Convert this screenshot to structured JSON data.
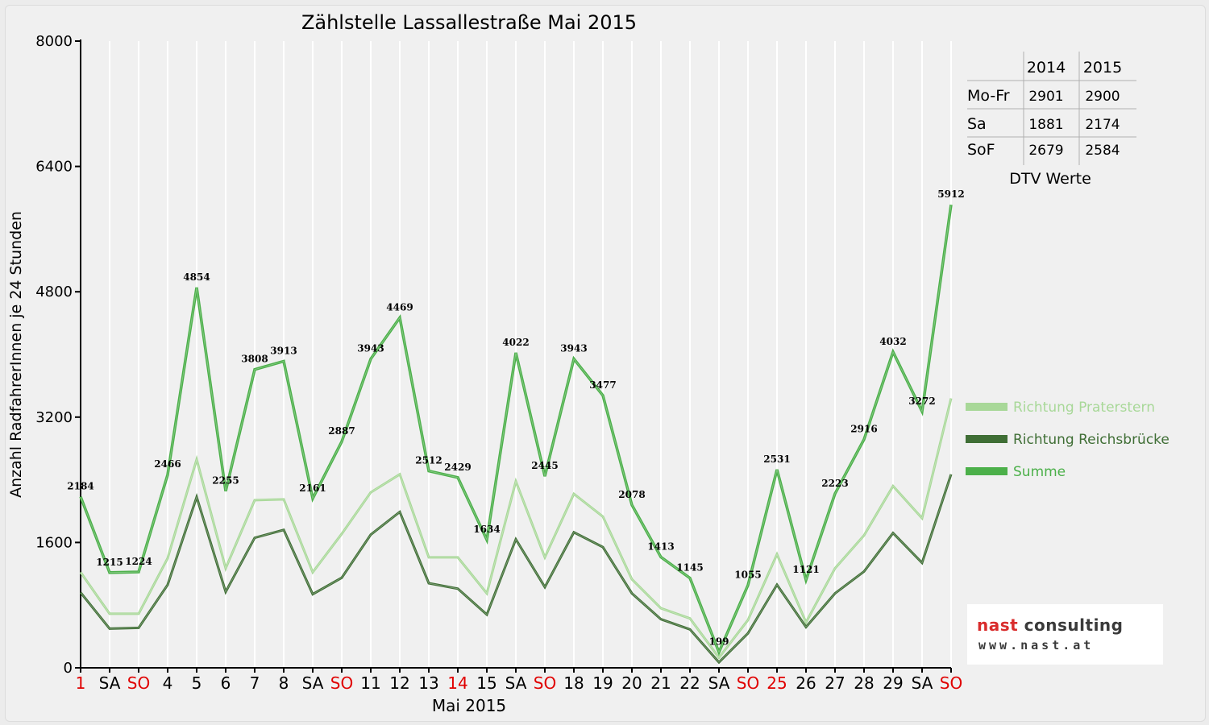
{
  "chart_data": {
    "type": "line",
    "title": "Zählstelle Lassallestraße Mai 2015",
    "xlabel": "Mai 2015",
    "ylabel": "Anzahl RadfahrerInnen je 24 Stunden",
    "ylim": [
      0,
      8000
    ],
    "yticks": [
      "0",
      "1600",
      "3200",
      "4800",
      "6400",
      "8000"
    ],
    "grid": "vertical",
    "legend_placement": "right",
    "categories": [
      "1",
      "SA",
      "SO",
      "4",
      "5",
      "6",
      "7",
      "8",
      "SA",
      "SO",
      "11",
      "12",
      "13",
      "14",
      "15",
      "SA",
      "SO",
      "18",
      "19",
      "20",
      "21",
      "22",
      "SA",
      "SO",
      "25",
      "26",
      "27",
      "28",
      "29",
      "SA",
      "SO"
    ],
    "red_categories": [
      0,
      2,
      9,
      13,
      16,
      23,
      24,
      30
    ],
    "series": [
      {
        "name": "Richtung Praterstern",
        "color": "#a8d898",
        "values": [
          1220,
          690,
          690,
          1400,
          2660,
          1270,
          2140,
          2150,
          1220,
          1710,
          2240,
          2470,
          1410,
          1410,
          950,
          2380,
          1410,
          2220,
          1930,
          1130,
          760,
          630,
          130,
          610,
          1450,
          580,
          1270,
          1690,
          2320,
          1910,
          3440
        ]
      },
      {
        "name": "Richtung Reichsbrücke",
        "color": "#3f6e35",
        "values": [
          960,
          500,
          510,
          1060,
          2180,
          970,
          1660,
          1760,
          940,
          1150,
          1700,
          1990,
          1080,
          1010,
          680,
          1640,
          1030,
          1730,
          1540,
          950,
          620,
          490,
          70,
          440,
          1060,
          520,
          950,
          1230,
          1720,
          1340,
          2470
        ]
      },
      {
        "name": "Summe",
        "color": "#4cb04a",
        "values": [
          2184,
          1215,
          1224,
          2466,
          4854,
          2255,
          3808,
          3913,
          2161,
          2887,
          3943,
          4469,
          2512,
          2429,
          1634,
          4022,
          2445,
          3943,
          3477,
          2078,
          1413,
          1145,
          199,
          1055,
          2531,
          1121,
          2223,
          2916,
          4032,
          3272,
          5912
        ],
        "labels": [
          "2184",
          "1215",
          "1224",
          "2466",
          "4854",
          "2255",
          "3808",
          "3913",
          "2161",
          "2887",
          "3943",
          "4469",
          "2512",
          "2429",
          "1634",
          "4022",
          "2445",
          "3943",
          "3477",
          "2078",
          "1413",
          "1145",
          "199",
          "1055",
          "2531",
          "1121",
          "2223",
          "2916",
          "4032",
          "3272",
          "5912"
        ]
      }
    ]
  },
  "dtv_table": {
    "headers": [
      "",
      "2014",
      "2015"
    ],
    "rows": [
      [
        "Mo-Fr",
        "2901",
        "2900"
      ],
      [
        "Sa",
        "1881",
        "2174"
      ],
      [
        "SoF",
        "2679",
        "2584"
      ]
    ],
    "caption": "DTV Werte"
  },
  "logo": {
    "brand_part1": "nast",
    "brand_part2": "consulting",
    "url": "www.nast.at"
  }
}
